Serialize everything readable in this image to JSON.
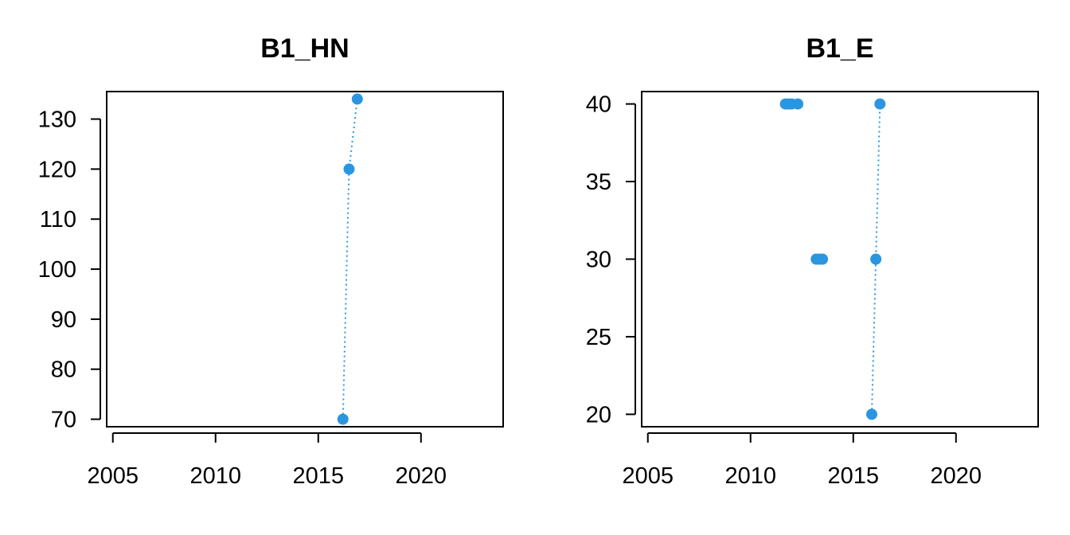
{
  "chart_data": [
    {
      "type": "scatter",
      "title": "B1_HN",
      "xlabel": "",
      "ylabel": "",
      "xlim": [
        2004.7,
        2024
      ],
      "ylim": [
        68.5,
        135.5
      ],
      "x_ticks": [
        "2005",
        "2010",
        "2015",
        "2020"
      ],
      "y_ticks": [
        "70",
        "80",
        "90",
        "100",
        "110",
        "120",
        "130"
      ],
      "grid": false,
      "series": [
        {
          "style": "line+points",
          "color": "#2b96e0",
          "x": [
            2016.2,
            2016.5,
            2016.9
          ],
          "y": [
            70,
            120,
            134
          ]
        }
      ]
    },
    {
      "type": "scatter",
      "title": "B1_E",
      "xlabel": "",
      "ylabel": "",
      "xlim": [
        2004.7,
        2024
      ],
      "ylim": [
        19.2,
        40.8
      ],
      "x_ticks": [
        "2005",
        "2010",
        "2015",
        "2020"
      ],
      "y_ticks": [
        "20",
        "25",
        "30",
        "35",
        "40"
      ],
      "grid": false,
      "series": [
        {
          "style": "points",
          "color": "#2b96e0",
          "x": [
            2011.7,
            2011.85,
            2012.0,
            2012.3,
            2013.2,
            2013.35,
            2013.5
          ],
          "y": [
            40,
            40,
            40,
            40,
            30,
            30,
            30
          ]
        },
        {
          "style": "line+points",
          "color": "#2b96e0",
          "x": [
            2015.9,
            2016.1,
            2016.3
          ],
          "y": [
            20,
            30,
            40
          ]
        }
      ]
    }
  ]
}
